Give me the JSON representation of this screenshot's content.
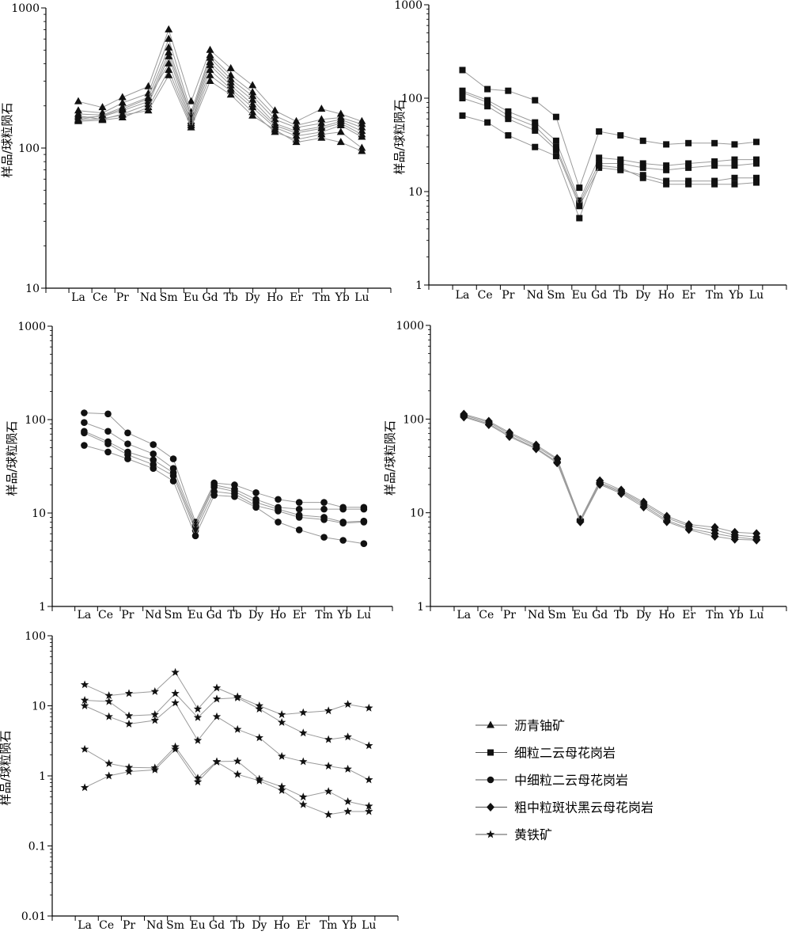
{
  "chart_data": [
    {
      "type": "line",
      "log_scale_y": true,
      "ylabel": "样品/球粒陨石",
      "yticks": [
        "10",
        "100",
        "1000"
      ],
      "ylim": [
        10,
        1000
      ],
      "categories": [
        "La",
        "Ce",
        "Pr",
        "Nd",
        "Sm",
        "Eu",
        "Gd",
        "Tb",
        "Dy",
        "Ho",
        "Er",
        "Tm",
        "Yb",
        "Lu"
      ],
      "marker": "triangle",
      "series": [
        {
          "values": [
            215,
            195,
            230,
            275,
            700,
            215,
            500,
            370,
            280,
            185,
            155,
            190,
            175,
            155
          ]
        },
        {
          "values": [
            185,
            178,
            210,
            245,
            600,
            180,
            460,
            330,
            250,
            170,
            145,
            160,
            165,
            148
          ]
        },
        {
          "values": [
            175,
            172,
            195,
            230,
            520,
            170,
            440,
            310,
            235,
            160,
            140,
            150,
            160,
            140
          ]
        },
        {
          "values": [
            165,
            168,
            185,
            215,
            480,
            165,
            410,
            295,
            220,
            150,
            132,
            142,
            155,
            132
          ]
        },
        {
          "values": [
            170,
            160,
            175,
            205,
            450,
            155,
            390,
            280,
            205,
            145,
            128,
            138,
            150,
            125
          ]
        },
        {
          "values": [
            160,
            170,
            190,
            225,
            400,
            150,
            360,
            265,
            195,
            140,
            122,
            130,
            145,
            120
          ]
        },
        {
          "values": [
            155,
            158,
            165,
            195,
            360,
            145,
            330,
            255,
            180,
            130,
            115,
            125,
            130,
            100
          ]
        },
        {
          "values": [
            158,
            162,
            172,
            185,
            330,
            140,
            300,
            240,
            170,
            135,
            110,
            118,
            110,
            95
          ]
        }
      ]
    },
    {
      "type": "line",
      "log_scale_y": true,
      "ylabel": "样品/球粒陨石",
      "yticks": [
        "1",
        "10",
        "100",
        "1000"
      ],
      "ylim": [
        1,
        1000
      ],
      "categories": [
        "La",
        "Ce",
        "Pr",
        "Nd",
        "Sm",
        "Eu",
        "Gd",
        "Tb",
        "Dy",
        "Ho",
        "Er",
        "Tm",
        "Yb",
        "Lu"
      ],
      "marker": "square",
      "series": [
        {
          "values": [
            200,
            125,
            120,
            95,
            63,
            11,
            44,
            40,
            35,
            32,
            33,
            33,
            32,
            34
          ]
        },
        {
          "values": [
            120,
            95,
            72,
            55,
            35,
            8,
            23,
            22,
            20,
            19,
            20,
            21,
            22,
            22
          ]
        },
        {
          "values": [
            115,
            90,
            65,
            50,
            30,
            7.5,
            20,
            20,
            18,
            17,
            18,
            19,
            19,
            20
          ]
        },
        {
          "values": [
            100,
            82,
            60,
            45,
            28,
            7,
            18,
            17,
            15,
            13,
            13,
            13,
            14,
            14
          ]
        },
        {
          "values": [
            65,
            55,
            40,
            30,
            24,
            5.2,
            19,
            18,
            14,
            12,
            12,
            12,
            12,
            12.5
          ]
        }
      ]
    },
    {
      "type": "line",
      "log_scale_y": true,
      "ylabel": "样品/球粒陨石",
      "yticks": [
        "1",
        "10",
        "100",
        "1000"
      ],
      "ylim": [
        1,
        1000
      ],
      "categories": [
        "La",
        "Ce",
        "Pr",
        "Nd",
        "Sm",
        "Eu",
        "Gd",
        "Tb",
        "Dy",
        "Ho",
        "Er",
        "Tm",
        "Yb",
        "Lu"
      ],
      "marker": "circle",
      "series": [
        {
          "values": [
            118,
            115,
            72,
            54,
            38,
            8,
            21,
            20,
            16.5,
            14,
            13,
            13,
            11.5,
            11.5
          ]
        },
        {
          "values": [
            93,
            75,
            55,
            43,
            30,
            7.5,
            20,
            18,
            14,
            11.5,
            11,
            11,
            11,
            11
          ]
        },
        {
          "values": [
            75,
            58,
            45,
            37,
            27,
            7,
            19,
            17,
            13,
            11,
            9.5,
            9,
            8,
            8.2
          ]
        },
        {
          "values": [
            72,
            55,
            42,
            33,
            25,
            6.5,
            17,
            16,
            12,
            10.5,
            9,
            8.5,
            7.8,
            8
          ]
        },
        {
          "values": [
            53,
            45,
            38,
            30,
            22,
            5.7,
            15.5,
            15,
            11.5,
            8,
            6.6,
            5.5,
            5.1,
            4.7
          ]
        }
      ]
    },
    {
      "type": "line",
      "log_scale_y": true,
      "ylabel": "样品/球粒陨石",
      "yticks": [
        "1",
        "10",
        "100",
        "1000"
      ],
      "ylim": [
        1,
        1000
      ],
      "categories": [
        "La",
        "Ce",
        "Pr",
        "Nd",
        "Sm",
        "Eu",
        "Gd",
        "Tb",
        "Dy",
        "Ho",
        "Er",
        "Tm",
        "Yb",
        "Lu"
      ],
      "marker": "diamond",
      "series": [
        {
          "values": [
            113,
            95,
            72,
            53,
            38,
            8.5,
            22,
            17.5,
            13,
            9.2,
            7.5,
            7,
            6.2,
            6
          ]
        },
        {
          "values": [
            110,
            92,
            70,
            51,
            37,
            8.3,
            21,
            17,
            12.5,
            8.8,
            7.2,
            6.5,
            5.8,
            5.5
          ]
        },
        {
          "values": [
            107,
            89,
            67,
            49,
            35,
            8,
            20.5,
            16.5,
            12,
            8.3,
            6.8,
            6,
            5.5,
            5.2
          ]
        },
        {
          "values": [
            105,
            87,
            65,
            48,
            34,
            8,
            20,
            16,
            11.5,
            8,
            6.6,
            5.6,
            5.2,
            5.1
          ]
        }
      ]
    },
    {
      "type": "line",
      "log_scale_y": true,
      "ylabel": "样品/球粒陨石",
      "yticks": [
        "0.01",
        "0.1",
        "1",
        "10",
        "100"
      ],
      "ylim": [
        0.01,
        100
      ],
      "categories": [
        "La",
        "Ce",
        "Pr",
        "Nd",
        "Sm",
        "Eu",
        "Gd",
        "Tb",
        "Dy",
        "Ho",
        "Er",
        "Tm",
        "Yb",
        "Lu"
      ],
      "marker": "star",
      "series": [
        {
          "values": [
            20,
            14,
            15,
            16,
            30,
            9,
            18,
            13.5,
            10,
            7.5,
            8,
            8.5,
            10.5,
            9.3
          ]
        },
        {
          "values": [
            12,
            11.5,
            7.2,
            7.5,
            15,
            6.8,
            12.5,
            13,
            9,
            5.8,
            4.1,
            3.3,
            3.6,
            2.7
          ]
        },
        {
          "values": [
            10,
            7,
            5.5,
            6.2,
            11,
            3.2,
            7,
            4.6,
            3.5,
            1.9,
            1.6,
            1.38,
            1.25,
            0.88
          ]
        },
        {
          "values": [
            2.4,
            1.5,
            1.32,
            1.3,
            2.6,
            0.93,
            1.6,
            1.62,
            0.9,
            0.7,
            0.5,
            0.6,
            0.43,
            0.37
          ]
        },
        {
          "values": [
            0.68,
            1.0,
            1.15,
            1.22,
            2.4,
            0.82,
            1.58,
            1.05,
            0.85,
            0.62,
            0.39,
            0.28,
            0.31,
            0.31
          ]
        }
      ]
    }
  ],
  "legend": {
    "placement": "bottom-right",
    "items": [
      {
        "marker": "triangle",
        "label": "沥青铀矿"
      },
      {
        "marker": "square",
        "label": "细粒二云母花岗岩"
      },
      {
        "marker": "circle",
        "label": "中细粒二云母花岗岩"
      },
      {
        "marker": "diamond",
        "label": "粗中粒斑状黑云母花岗岩"
      },
      {
        "marker": "star",
        "label": "黄铁矿"
      }
    ]
  },
  "colors": {
    "line": "#9a9a9a",
    "marker": "#111111",
    "axis": "#000000"
  }
}
